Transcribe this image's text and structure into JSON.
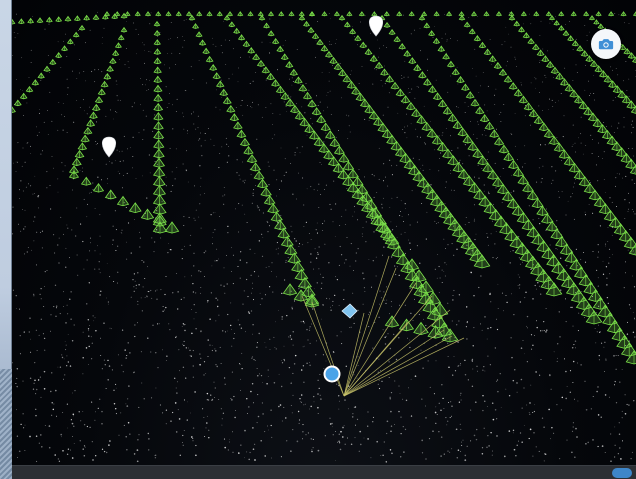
{
  "viewer": {
    "camera_button_icon": "camera-icon",
    "map_pin_icon": "map-pin-icon",
    "selected_camera_marker_icon": "selected-camera-icon",
    "colors": {
      "background": "#05070c",
      "camera_pyramid": "#7be04a",
      "point_cloud": "#e8e8e8",
      "match_ray": "#c9c46a",
      "selected_point": "#4aa3e8",
      "selected_camera": "#7fc3ee",
      "pin": "#ffffff"
    }
  },
  "status_bar": {
    "text": ""
  }
}
